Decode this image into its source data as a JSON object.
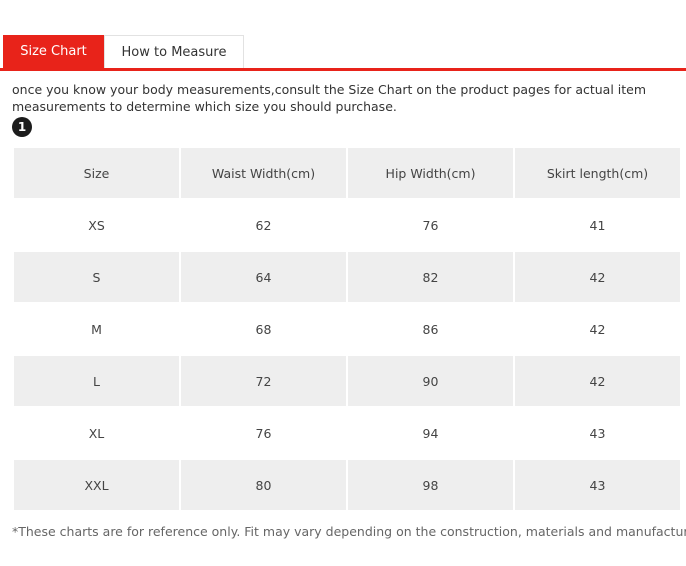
{
  "tabs": {
    "active_label": "Size Chart",
    "inactive_label": "How to Measure"
  },
  "intro_text": "once you know your body measurements,consult the Size Chart on the product pages for actual item measurements to determine which size you should purchase.",
  "step_badge": "1",
  "table": {
    "headers": [
      "Size",
      "Waist Width(cm)",
      "Hip Width(cm)",
      "Skirt length(cm)"
    ],
    "rows": [
      [
        "XS",
        "62",
        "76",
        "41"
      ],
      [
        "S",
        "64",
        "82",
        "42"
      ],
      [
        "M",
        "68",
        "86",
        "42"
      ],
      [
        "L",
        "72",
        "90",
        "42"
      ],
      [
        "XL",
        "76",
        "94",
        "43"
      ],
      [
        "XXL",
        "80",
        "98",
        "43"
      ]
    ]
  },
  "footnote": "*These charts are for reference only. Fit may vary depending on the construction, materials and manufacturer.",
  "colors": {
    "accent": "#e8231a",
    "row_shade": "#eeeeee",
    "badge": "#1c1c1c"
  }
}
